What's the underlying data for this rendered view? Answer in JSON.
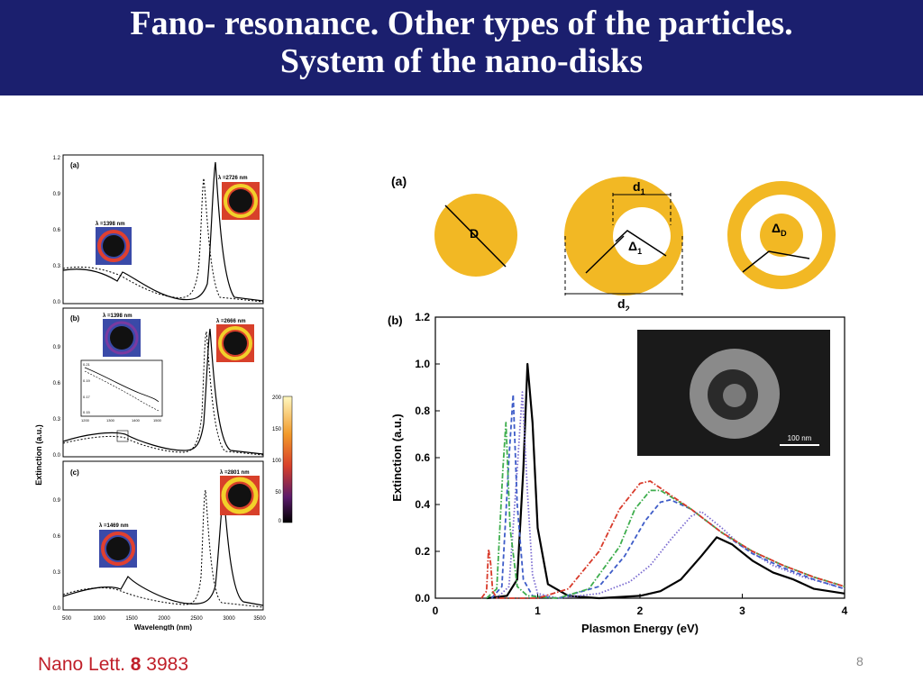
{
  "slide": {
    "title_line1": "Fano- resonance. Other types of the particles.",
    "title_line2": "System of the nano-disks",
    "citation_journal": "Nano Lett.",
    "citation_volume": "8",
    "citation_page": "3983",
    "slide_number": "8"
  },
  "colors": {
    "title_bg": "#1b1f6e",
    "disk_gold": "#f2b824",
    "citation_red": "#c0202a"
  },
  "left_figure": {
    "ylabel": "Extinction (a.u.)",
    "xlabel": "Wavelength (nm)",
    "x_ticks": [
      "500",
      "1000",
      "1500",
      "2000",
      "2500",
      "3000",
      "3500"
    ],
    "y_ticks": [
      "0.0",
      "0.3",
      "0.6",
      "0.9",
      "1.2"
    ],
    "colorbar_ticks": [
      "200",
      "150",
      "100",
      "50",
      "0"
    ],
    "inset_ticks_y": [
      "0.21",
      "0.19",
      "0.17",
      "0.15"
    ],
    "inset_ticks_x": [
      "1200",
      "1300",
      "1400",
      "1500"
    ],
    "panels": [
      {
        "tag": "(a)",
        "peak_label": "λ =2726 nm",
        "low_label": "λ =1398 nm"
      },
      {
        "tag": "(b)",
        "peak_label": "λ =2666 nm",
        "low_label": "λ =1398 nm"
      },
      {
        "tag": "(c)",
        "peak_label": "λ =2801 nm",
        "low_label": "λ =1469 nm"
      }
    ]
  },
  "schematic": {
    "tag": "(a)",
    "D": "D",
    "d1": "d",
    "d1_sub": "1",
    "d2": "d",
    "d2_sub": "2",
    "delta1": "Δ",
    "delta1_sub": "1",
    "deltaD": "Δ",
    "deltaD_sub": "D"
  },
  "chart_data": {
    "type": "line",
    "tag": "(b)",
    "xlabel": "Plasmon Energy (eV)",
    "ylabel": "Extinction (a.u.)",
    "xlim": [
      0,
      4
    ],
    "ylim": [
      0,
      1.2
    ],
    "x_ticks": [
      "0",
      "1",
      "2",
      "3",
      "4"
    ],
    "y_ticks": [
      "0.0",
      "0.2",
      "0.4",
      "0.6",
      "0.8",
      "1.0",
      "1.2"
    ],
    "inset_scale_label": "100 nm",
    "series": [
      {
        "style": "solid",
        "color": "#000000",
        "x": [
          0.5,
          0.7,
          0.8,
          0.86,
          0.9,
          0.95,
          1.0,
          1.1,
          1.3,
          1.6,
          2.0,
          2.2,
          2.4,
          2.6,
          2.75,
          2.9,
          3.1,
          3.3,
          3.5,
          3.7,
          3.85,
          4.0
        ],
        "y": [
          0,
          0.01,
          0.08,
          0.55,
          1.0,
          0.75,
          0.3,
          0.06,
          0.01,
          0.0,
          0.01,
          0.03,
          0.08,
          0.18,
          0.26,
          0.23,
          0.16,
          0.11,
          0.08,
          0.04,
          0.03,
          0.02
        ]
      },
      {
        "style": "dotted",
        "color": "#7a6ad0",
        "x": [
          0.6,
          0.72,
          0.8,
          0.85,
          0.9,
          0.95,
          1.0,
          1.2,
          1.6,
          1.9,
          2.1,
          2.3,
          2.5,
          2.6,
          2.8,
          3.0,
          3.3,
          3.6,
          3.85,
          4.0
        ],
        "y": [
          0,
          0.05,
          0.55,
          0.88,
          0.45,
          0.1,
          0.02,
          0.0,
          0.02,
          0.07,
          0.14,
          0.25,
          0.35,
          0.37,
          0.3,
          0.22,
          0.14,
          0.09,
          0.06,
          0.04
        ]
      },
      {
        "style": "dashed",
        "color": "#3e5cc8",
        "x": [
          0.55,
          0.65,
          0.72,
          0.76,
          0.8,
          0.86,
          0.95,
          1.2,
          1.6,
          1.85,
          2.05,
          2.2,
          2.3,
          2.5,
          2.8,
          3.1,
          3.4,
          3.7,
          4.0
        ],
        "y": [
          0,
          0.05,
          0.6,
          0.87,
          0.4,
          0.08,
          0.01,
          0.0,
          0.05,
          0.18,
          0.33,
          0.41,
          0.42,
          0.38,
          0.28,
          0.19,
          0.13,
          0.08,
          0.04
        ]
      },
      {
        "style": "dash-dot",
        "color": "#3fae4e",
        "x": [
          0.5,
          0.6,
          0.66,
          0.69,
          0.73,
          0.8,
          0.9,
          1.2,
          1.5,
          1.8,
          1.95,
          2.1,
          2.2,
          2.5,
          2.8,
          3.1,
          3.4,
          3.7,
          4.0
        ],
        "y": [
          0,
          0.04,
          0.55,
          0.75,
          0.3,
          0.05,
          0.01,
          0.0,
          0.04,
          0.22,
          0.38,
          0.46,
          0.46,
          0.38,
          0.28,
          0.2,
          0.14,
          0.09,
          0.05
        ]
      },
      {
        "style": "dash-dot",
        "color": "#d83a2a",
        "x": [
          0.45,
          0.5,
          0.52,
          0.54,
          0.56,
          0.6,
          0.8,
          1.0,
          1.3,
          1.6,
          1.8,
          2.0,
          2.1,
          2.2,
          2.5,
          2.8,
          3.1,
          3.4,
          3.7,
          4.0
        ],
        "y": [
          0,
          0.03,
          0.21,
          0.15,
          0.03,
          0.0,
          0.0,
          0.0,
          0.04,
          0.2,
          0.38,
          0.49,
          0.5,
          0.47,
          0.38,
          0.28,
          0.2,
          0.14,
          0.09,
          0.05
        ]
      }
    ]
  }
}
